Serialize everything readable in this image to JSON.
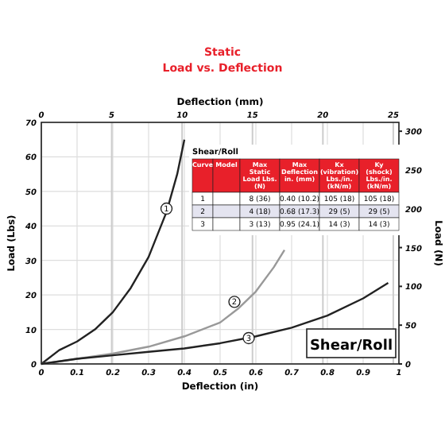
{
  "chart_data": {
    "type": "line",
    "title": "Static",
    "subtitle": "Load vs. Deflection",
    "xlabel": "Deflection (in)",
    "ylabel": "Load (Lbs)",
    "y2label": "Load (N)",
    "x2label": "Deflection (mm)",
    "xlim": [
      0,
      1
    ],
    "xticks": [
      0,
      0.1,
      0.2,
      0.3,
      0.4,
      0.5,
      0.6,
      0.7,
      0.8,
      0.9,
      1
    ],
    "ylim": [
      0,
      70
    ],
    "yticks": [
      0,
      10,
      20,
      30,
      40,
      50,
      60,
      70
    ],
    "x2lim": [
      0,
      25.4
    ],
    "x2ticks": [
      0,
      5,
      10,
      15,
      20,
      25
    ],
    "y2lim": [
      0,
      311.4
    ],
    "y2ticks": [
      0,
      50,
      100,
      150,
      200,
      250,
      300
    ],
    "grid": true,
    "line_style": "solid",
    "series": [
      {
        "color": "#222222",
        "x": [
          0,
          0.05,
          0.1,
          0.15,
          0.2,
          0.25,
          0.3,
          0.35,
          0.38,
          0.4
        ],
        "values": [
          0,
          4,
          6.5,
          10,
          15,
          22,
          31,
          44,
          55,
          65
        ]
      },
      {
        "color": "#999999",
        "x": [
          0,
          0.1,
          0.2,
          0.3,
          0.4,
          0.5,
          0.55,
          0.6,
          0.65,
          0.68
        ],
        "values": [
          0,
          1.5,
          3,
          5,
          8,
          12,
          16,
          21,
          28,
          33
        ]
      },
      {
        "color": "#222222",
        "x": [
          0,
          0.1,
          0.2,
          0.3,
          0.4,
          0.5,
          0.6,
          0.7,
          0.8,
          0.9,
          0.97
        ],
        "values": [
          0,
          1.5,
          2.5,
          3.5,
          4.5,
          6,
          8,
          10.5,
          14,
          19,
          23.5
        ]
      }
    ],
    "annotations": [
      {
        "text": "1",
        "x": 0.35,
        "y": 45
      },
      {
        "text": "2",
        "x": 0.54,
        "y": 18
      },
      {
        "text": "3",
        "x": 0.58,
        "y": 7.5
      },
      "Shear/Roll",
      "Shear/Roll",
      "Curve",
      "Model",
      "Max Static Load Lbs. (N)",
      "Max Deflection in. (mm)",
      "Kx (vibration) Lbs./in. (kN/m)",
      "Ky (shock) Lbs./in. (kN/m)",
      "1",
      "8 (36)",
      "0.40 (10.2)",
      "105 (18)",
      "105 (18)",
      "2",
      "4 (18)",
      "0.68 (17.3)",
      "29 (5)",
      "29 (5)",
      "3",
      "3 (13)",
      "0.95 (24.1)",
      "14 (3)",
      "14 (3)"
    ]
  }
}
